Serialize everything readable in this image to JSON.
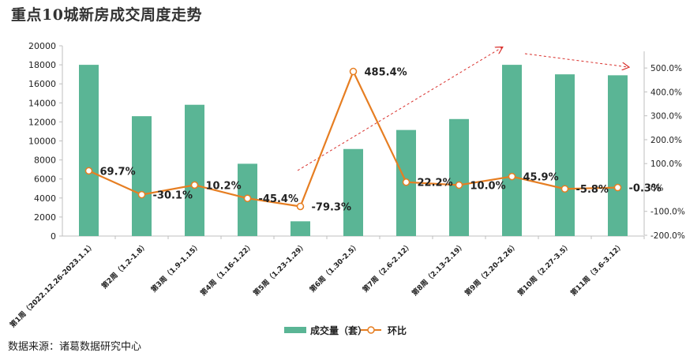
{
  "title": "重点10城新房成交周度走势",
  "source": "数据来源：诸葛数据研究中心",
  "colors": {
    "bar": "#5ab595",
    "line": "#e67e22",
    "arrow": "#d9302c",
    "axis": "#bfbfbf"
  },
  "chart_data": {
    "type": "bar",
    "categories": [
      "第1周（2022.12.26-2023.1.1）",
      "第2周（1.2-1.8）",
      "第3周（1.9-1.15）",
      "第4周（1.16-1.22）",
      "第5周（1.23-1.29）",
      "第6周（1.30-2.5）",
      "第7周（2.6-2.12）",
      "第8周（2.13-2.19）",
      "第9周（2.20-2.26）",
      "第10周（2.27-3.5）",
      "第11周（3.6-3.12）"
    ],
    "series": [
      {
        "name": "成交量（套）",
        "type": "bar",
        "axis": "left",
        "values": [
          18000,
          12600,
          13800,
          7600,
          1550,
          9150,
          11150,
          12300,
          18000,
          17000,
          16900
        ]
      },
      {
        "name": "环比",
        "type": "line",
        "axis": "right",
        "values": [
          69.7,
          -30.1,
          10.2,
          -45.4,
          -79.3,
          485.4,
          22.2,
          10.0,
          45.9,
          -5.8,
          -0.3
        ],
        "labels": [
          "69.7%",
          "-30.1%",
          "10.2%",
          "-45.4%",
          "-79.3%",
          "485.4%",
          "22.2%",
          "10.0%",
          "45.9%",
          "-5.8%",
          "-0.3%"
        ]
      }
    ],
    "y_left": {
      "min": 0,
      "max": 20000,
      "ticks": [
        "0",
        "2000",
        "4000",
        "6000",
        "8000",
        "10000",
        "12000",
        "14000",
        "16000",
        "18000",
        "20000"
      ]
    },
    "y_right": {
      "min": -200,
      "max": 550,
      "ticks": [
        "-200.0%",
        "-100.0%",
        "0%",
        "100.0%",
        "200.0%",
        "300.0%",
        "400.0%",
        "500.0%"
      ]
    },
    "grid": false,
    "legend": "bottom"
  }
}
